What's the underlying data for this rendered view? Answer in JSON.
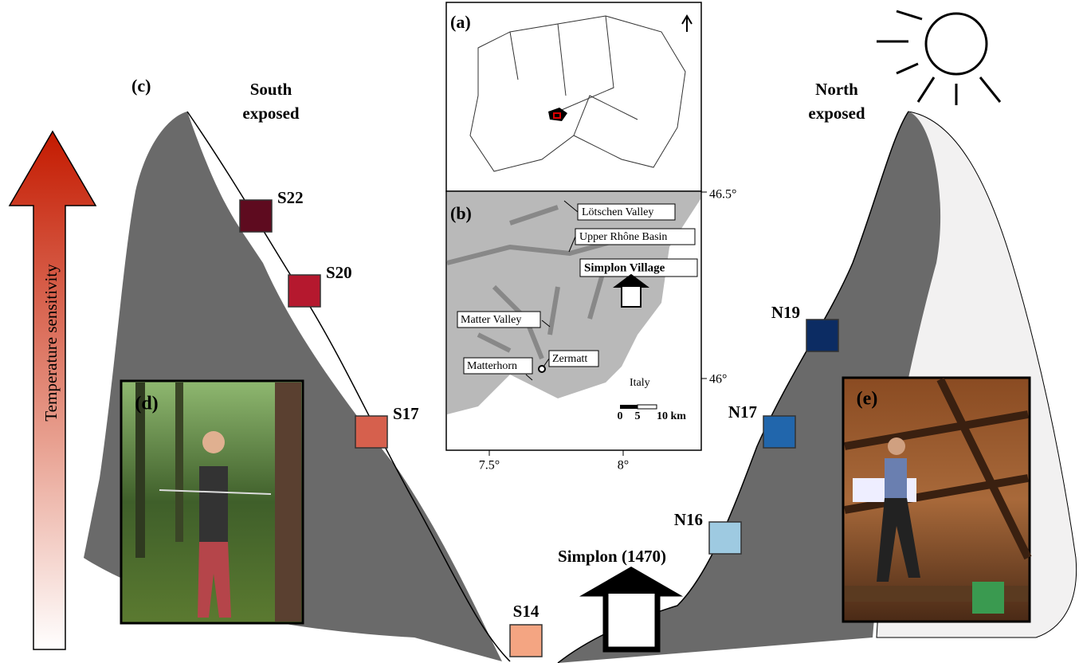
{
  "panels": {
    "a": "(a)",
    "b": "(b)",
    "c": "(c)",
    "d": "(d)",
    "e": "(e)"
  },
  "slopes": {
    "south": "South exposed",
    "north": "North exposed"
  },
  "arrow_label": "Temperature sensitivity",
  "village": "Simplon (1470)",
  "sites": [
    {
      "label": "S22",
      "color": "#5e0b1f"
    },
    {
      "label": "S20",
      "color": "#b5182e"
    },
    {
      "label": "S17",
      "color": "#d6604d"
    },
    {
      "label": "S14",
      "color": "#f4a582"
    },
    {
      "label": "N16",
      "color": "#9ecae1"
    },
    {
      "label": "N17",
      "color": "#2166ac"
    },
    {
      "label": "N19",
      "color": "#0c2c63"
    }
  ],
  "map": {
    "labels": [
      "Lötschen Valley",
      "Upper Rhône Basin",
      "Simplon Village",
      "Matter Valley",
      "Zermatt",
      "Matterhorn",
      "Italy"
    ],
    "lat_ticks": [
      "46.5°",
      "46°"
    ],
    "lon_ticks": [
      "7.5°",
      "8°"
    ],
    "scale": [
      "0",
      "5",
      "10 km"
    ]
  }
}
